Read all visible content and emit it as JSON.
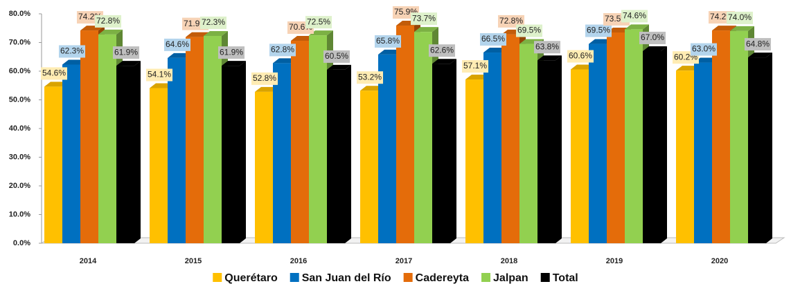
{
  "chart_data": {
    "type": "bar3d",
    "categories": [
      "2014",
      "2015",
      "2016",
      "2017",
      "2018",
      "2019",
      "2020"
    ],
    "series": [
      {
        "name": "Querétaro",
        "color": "#ffc000",
        "values": [
          54.6,
          54.1,
          52.8,
          53.2,
          57.1,
          60.6,
          60.2
        ],
        "value_labels": [
          "54.6%",
          "54.1%",
          "52.8%",
          "53.2%",
          "57.1%",
          "60.6%",
          "60.2%"
        ]
      },
      {
        "name": "San Juan del Río",
        "color": "#0070c0",
        "values": [
          62.3,
          64.6,
          62.8,
          65.8,
          66.5,
          69.5,
          63.0
        ],
        "value_labels": [
          "62.3%",
          "64.6%",
          "62.8%",
          "65.8%",
          "66.5%",
          "69.5%",
          "63.0%"
        ]
      },
      {
        "name": "Cadereyta",
        "color": "#e46c0a",
        "values": [
          74.2,
          71.9,
          70.6,
          75.9,
          72.8,
          73.5,
          74.2
        ],
        "value_labels": [
          "74.2%",
          "71.9%",
          "70.6%",
          "75.9%",
          "72.8%",
          "73.5%",
          "74.2%"
        ]
      },
      {
        "name": "Jalpan",
        "color": "#92d050",
        "values": [
          72.8,
          72.3,
          72.5,
          73.7,
          69.5,
          74.6,
          74.0
        ],
        "value_labels": [
          "72.8%",
          "72.3%",
          "72.5%",
          "73.7%",
          "69.5%",
          "74.6%",
          "74.0%"
        ]
      },
      {
        "name": "Total",
        "color": "#000000",
        "values": [
          61.9,
          61.9,
          60.5,
          62.6,
          63.8,
          67.0,
          64.8
        ],
        "value_labels": [
          "61.9%",
          "61.9%",
          "60.5%",
          "62.6%",
          "63.8%",
          "67.0%",
          "64.8%"
        ]
      }
    ],
    "ylim": [
      0,
      80
    ],
    "yticks": [
      {
        "value": 0,
        "label": "0.0%"
      },
      {
        "value": 10,
        "label": "10.0%"
      },
      {
        "value": 20,
        "label": "20.0%"
      },
      {
        "value": 30,
        "label": "30.0%"
      },
      {
        "value": 40,
        "label": "40.0%"
      },
      {
        "value": 50,
        "label": "50.0%"
      },
      {
        "value": 60,
        "label": "60.0%"
      },
      {
        "value": 70,
        "label": "70.0%"
      },
      {
        "value": 80,
        "label": "80.0%"
      }
    ],
    "legend": "bottom"
  }
}
